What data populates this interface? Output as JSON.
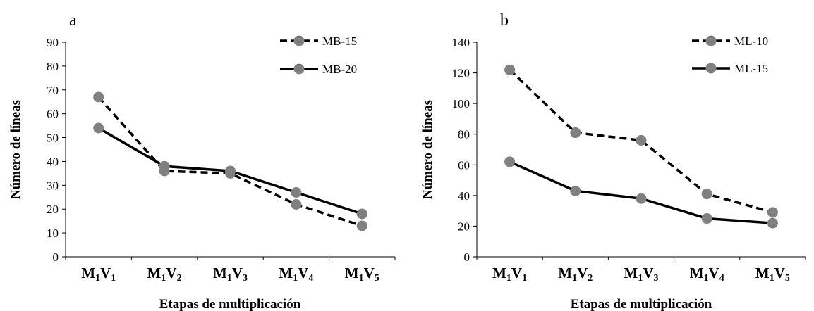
{
  "chart_data": [
    {
      "type": "line",
      "panel": "a",
      "categories": [
        "M1V1",
        "M1V2",
        "M1V3",
        "M1V4",
        "M1V5"
      ],
      "category_labels": [
        {
          "m": "M",
          "ms": "1",
          "v": "V",
          "vs": "1"
        },
        {
          "m": "M",
          "ms": "1",
          "v": "V",
          "vs": "2"
        },
        {
          "m": "M",
          "ms": "1",
          "v": "V",
          "vs": "3"
        },
        {
          "m": "M",
          "ms": "1",
          "v": "V",
          "vs": "4"
        },
        {
          "m": "M",
          "ms": "1",
          "v": "V",
          "vs": "5"
        }
      ],
      "series": [
        {
          "name": "MB-15",
          "style": "dashed",
          "values": [
            67,
            36,
            35,
            22,
            13
          ]
        },
        {
          "name": "MB-20",
          "style": "solid",
          "values": [
            54,
            38,
            36,
            27,
            18
          ]
        }
      ],
      "xlabel": "Etapas de multiplicación",
      "ylabel": "Número de líneas",
      "ylim": [
        0,
        90
      ],
      "yticks": [
        0,
        10,
        20,
        30,
        40,
        50,
        60,
        70,
        80,
        90
      ],
      "legend": "top-right",
      "grid": false
    },
    {
      "type": "line",
      "panel": "b",
      "categories": [
        "M1V1",
        "M1V2",
        "M1V3",
        "M1V4",
        "M1V5"
      ],
      "category_labels": [
        {
          "m": "M",
          "ms": "1",
          "v": "V",
          "vs": "1"
        },
        {
          "m": "M",
          "ms": "1",
          "v": "V",
          "vs": "2"
        },
        {
          "m": "M",
          "ms": "1",
          "v": "V",
          "vs": "3"
        },
        {
          "m": "M",
          "ms": "1",
          "v": "V",
          "vs": "4"
        },
        {
          "m": "M",
          "ms": "1",
          "v": "V",
          "vs": "5"
        }
      ],
      "series": [
        {
          "name": "ML-10",
          "style": "dashed",
          "values": [
            122,
            81,
            76,
            41,
            29
          ]
        },
        {
          "name": "ML-15",
          "style": "solid",
          "values": [
            62,
            43,
            38,
            25,
            22
          ]
        }
      ],
      "xlabel": "Etapas de multiplicación",
      "ylabel": "Número de líneas",
      "ylim": [
        0,
        140
      ],
      "yticks": [
        0,
        20,
        40,
        60,
        80,
        100,
        120,
        140
      ],
      "legend": "top-right",
      "grid": false
    }
  ],
  "colors": {
    "line": "#000000",
    "marker": "#808080"
  }
}
